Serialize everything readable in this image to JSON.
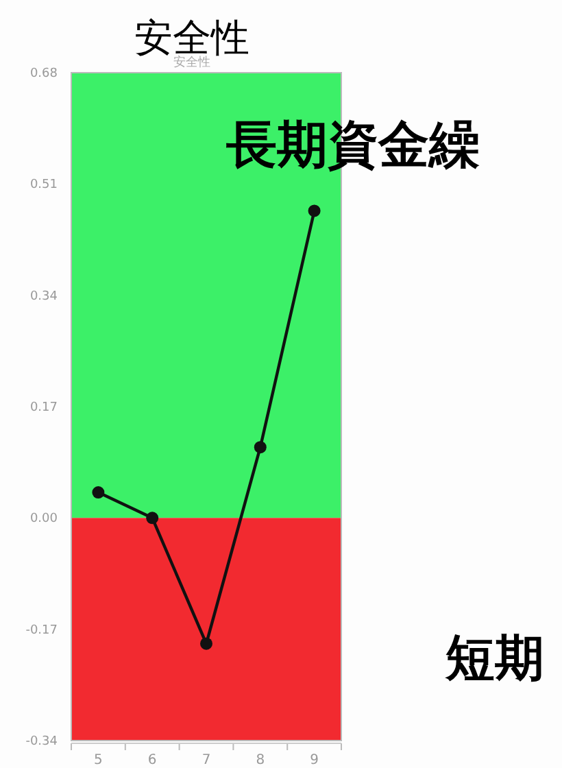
{
  "chart_data": {
    "type": "line",
    "title": "安全性",
    "subtitle": "安全性",
    "annotations": [
      "長期資金繰",
      "短期"
    ],
    "categories": [
      "5",
      "6",
      "7",
      "8",
      "9"
    ],
    "series": [
      {
        "color": "#111111",
        "values": [
          0.039,
          0.0,
          -0.192,
          0.108,
          0.469
        ]
      }
    ],
    "marker": "circle",
    "ylim": [
      -0.34,
      0.68
    ],
    "yticks": [
      0.68,
      0.51,
      0.34,
      0.17,
      {
        "value": 0,
        "label": "0.00"
      },
      -0.17,
      -0.34
    ],
    "bands": [
      {
        "axis": "y",
        "from": 0,
        "to": 0.68,
        "color": "#3cf068"
      },
      {
        "axis": "y",
        "from": -0.34,
        "to": 0,
        "color": "#f22a30"
      }
    ]
  }
}
